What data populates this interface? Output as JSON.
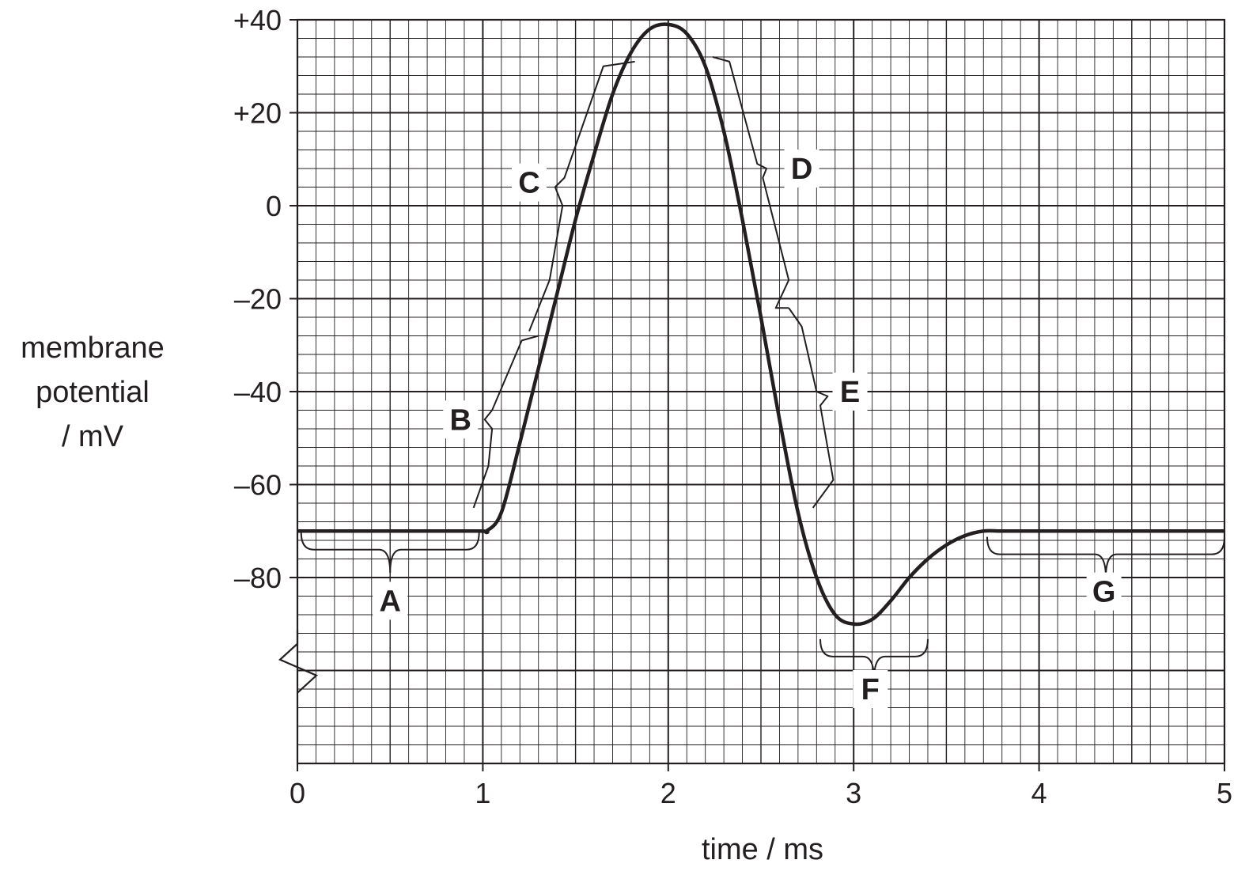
{
  "chart_data": {
    "type": "line",
    "title": "",
    "xlabel": "time / ms",
    "ylabel_lines": [
      "membrane",
      "potential",
      "/ mV"
    ],
    "xlim": [
      0,
      5
    ],
    "ylim": [
      -120,
      40
    ],
    "y_axis_break": true,
    "grid": true,
    "x_ticks": [
      {
        "value": 0,
        "label": "0"
      },
      {
        "value": 1,
        "label": "1"
      },
      {
        "value": 2,
        "label": "2"
      },
      {
        "value": 3,
        "label": "3"
      },
      {
        "value": 4,
        "label": "4"
      },
      {
        "value": 5,
        "label": "5"
      }
    ],
    "y_ticks": [
      {
        "value": 40,
        "label": "+40"
      },
      {
        "value": 20,
        "label": "+20"
      },
      {
        "value": 0,
        "label": "0"
      },
      {
        "value": -20,
        "label": "–20"
      },
      {
        "value": -40,
        "label": "–40"
      },
      {
        "value": -60,
        "label": "–60"
      },
      {
        "value": -80,
        "label": "–80"
      }
    ],
    "series": [
      {
        "x": [
          0,
          0.5,
          0.98,
          1.02,
          1.1,
          1.2,
          1.3,
          1.4,
          1.5,
          1.6,
          1.7,
          1.8,
          1.9,
          2.0,
          2.1,
          2.2,
          2.3,
          2.4,
          2.5,
          2.6,
          2.7,
          2.8,
          2.9,
          3.0,
          3.1,
          3.2,
          3.3,
          3.4,
          3.5,
          3.6,
          3.7,
          3.8,
          4.0,
          4.5,
          5.0
        ],
        "y": [
          -70,
          -70,
          -70,
          -70,
          -66,
          -51,
          -35,
          -19,
          -3,
          11,
          24,
          33,
          38,
          39,
          37,
          30,
          16,
          -3,
          -24,
          -46,
          -66,
          -80,
          -88,
          -90,
          -89,
          -85,
          -80,
          -76,
          -73,
          -71,
          -70,
          -70,
          -70,
          -70,
          -70
        ]
      }
    ],
    "annotations": [
      {
        "label": "A",
        "x": 0.5,
        "y": -85,
        "bracket_x": [
          0.05,
          0.97
        ],
        "bracket_y": -74
      },
      {
        "label": "B",
        "x": 0.88,
        "y": -46
      },
      {
        "label": "C",
        "x": 1.25,
        "y": 5
      },
      {
        "label": "D",
        "x": 2.72,
        "y": 8
      },
      {
        "label": "E",
        "x": 2.98,
        "y": -40
      },
      {
        "label": "F",
        "x": 3.09,
        "y": -104,
        "bracket_x": [
          2.82,
          3.4
        ],
        "bracket_y": -97
      },
      {
        "label": "G",
        "x": 4.35,
        "y": -83,
        "bracket_x": [
          3.72,
          5.0
        ],
        "bracket_y": -75
      }
    ]
  }
}
